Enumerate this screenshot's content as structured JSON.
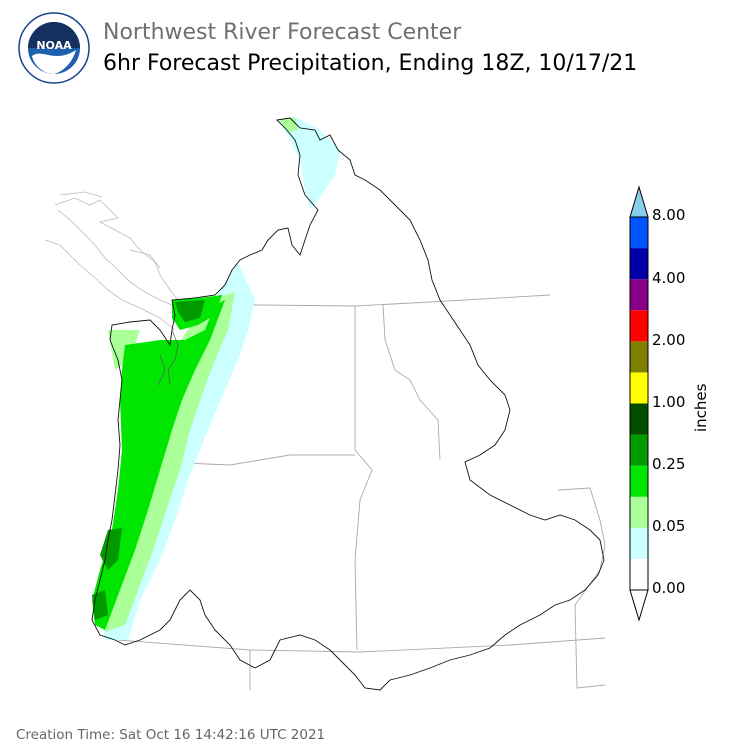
{
  "header": {
    "title": "Northwest River Forecast Center",
    "subtitle": "6hr Forecast Precipitation, Ending 18Z, 10/17/21"
  },
  "logo": {
    "text": "NOAA",
    "ring_text": "NATIONAL OCEANIC AND ATMOSPHERIC ADMINISTRATION · U.S. DEPARTMENT OF COMMERCE"
  },
  "colorbar": {
    "units": "inches",
    "tick_labels": [
      "0.00",
      "0.05",
      "0.25",
      "1.00",
      "2.00",
      "4.00",
      "8.00"
    ],
    "colors": [
      "#ffffff",
      "#ccffff",
      "#aaff99",
      "#00e600",
      "#009900",
      "#004d00",
      "#ffff00",
      "#808000",
      "#ff0000",
      "#880088",
      "#0000aa",
      "#0055ff",
      "#87ceeb"
    ]
  },
  "footer": {
    "creation_time": "Creation Time: Sat Oct 16 14:42:16 UTC 2021"
  }
}
